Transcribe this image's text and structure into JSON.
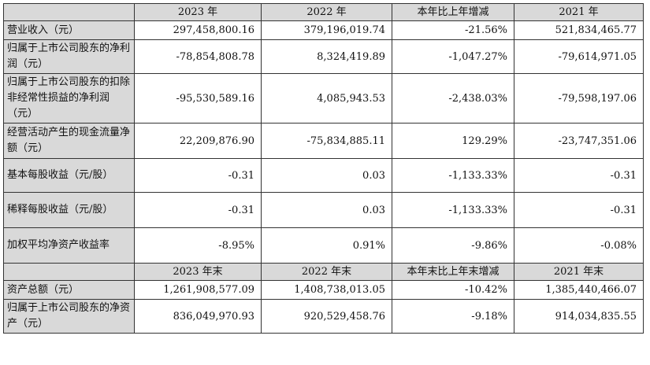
{
  "header_1": [
    "",
    "2023 年",
    "2022 年",
    "本年比上年增减",
    "2021 年"
  ],
  "rows_1": [
    {
      "label": "营业收入（元）",
      "values": [
        "297,458,800.16",
        "379,196,019.74",
        "-21.56%",
        "521,834,465.77"
      ]
    },
    {
      "label": "归属于上市公司股东的净利润（元）",
      "values": [
        "-78,854,808.78",
        "8,324,419.89",
        "-1,047.27%",
        "-79,614,971.05"
      ]
    },
    {
      "label": "归属于上市公司股东的扣除非经常性损益的净利润（元）",
      "values": [
        "-95,530,589.16",
        "4,085,943.53",
        "-2,438.03%",
        "-79,598,197.06"
      ]
    },
    {
      "label": "经营活动产生的现金流量净额（元）",
      "values": [
        "22,209,876.90",
        "-75,834,885.11",
        "129.29%",
        "-23,747,351.06"
      ]
    },
    {
      "label": "基本每股收益（元/股）",
      "values": [
        "-0.31",
        "0.03",
        "-1,133.33%",
        "-0.31"
      ]
    },
    {
      "label": "稀释每股收益（元/股）",
      "values": [
        "-0.31",
        "0.03",
        "-1,133.33%",
        "-0.31"
      ]
    },
    {
      "label": "加权平均净资产收益率",
      "values": [
        "-8.95%",
        "0.91%",
        "-9.86%",
        "-0.08%"
      ]
    }
  ],
  "header_2": [
    "",
    "2023 年末",
    "2022 年末",
    "本年末比上年末增减",
    "2021 年末"
  ],
  "rows_2": [
    {
      "label": "资产总额（元）",
      "values": [
        "1,261,908,577.09",
        "1,408,738,013.05",
        "-10.42%",
        "1,385,440,466.07"
      ]
    },
    {
      "label": "归属于上市公司股东的净资产（元）",
      "values": [
        "836,049,970.93",
        "920,529,458.76",
        "-9.18%",
        "914,034,835.55"
      ]
    }
  ]
}
